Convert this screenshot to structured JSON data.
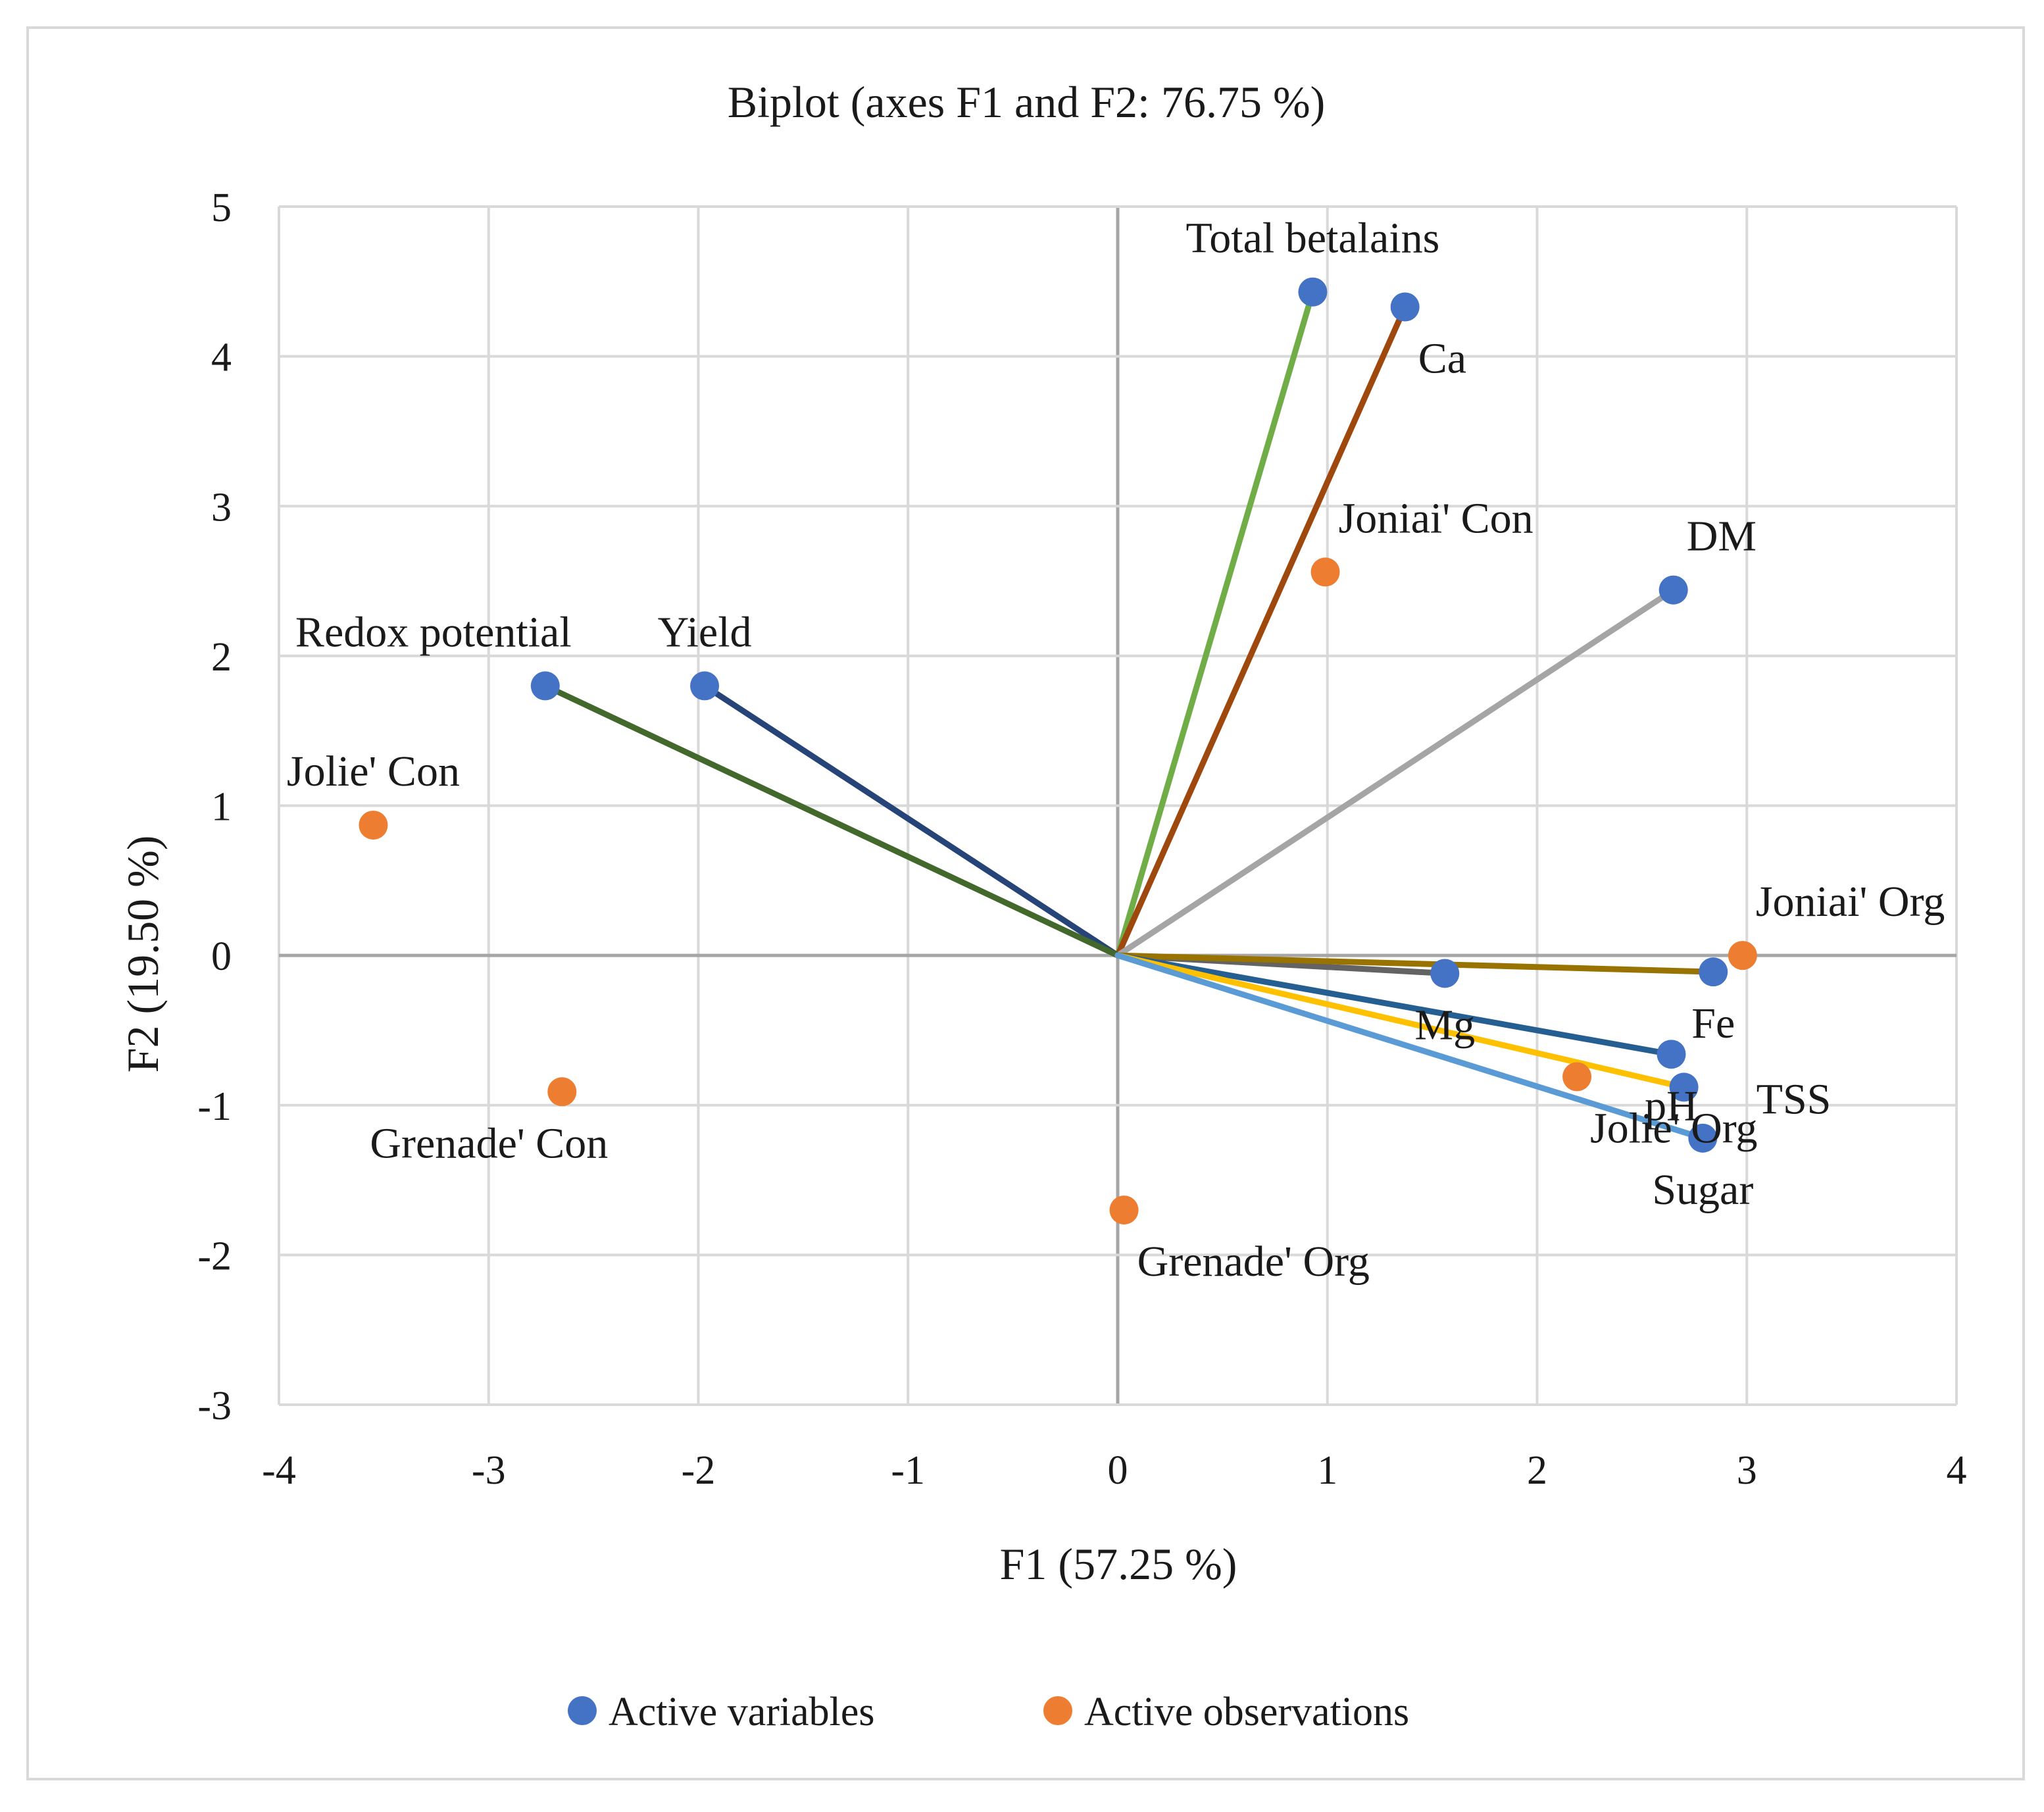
{
  "chart_data": {
    "type": "scatter",
    "subtype": "biplot",
    "title": "Biplot (axes F1 and F2: 76.75 %)",
    "xlabel": "F1 (57.25 %)",
    "ylabel": "F2 (19.50 %)",
    "xlim": [
      -4,
      4
    ],
    "ylim": [
      -3,
      5
    ],
    "xticks": [
      -4,
      -3,
      -2,
      -1,
      0,
      1,
      2,
      3,
      4
    ],
    "yticks": [
      -3,
      -2,
      -1,
      0,
      1,
      2,
      3,
      4,
      5
    ],
    "xtick_labels": [
      "-4",
      "-3",
      "-2",
      "-1",
      "0",
      "1",
      "2",
      "3",
      "4"
    ],
    "ytick_labels": [
      "-3",
      "-2",
      "-1",
      "0",
      "1",
      "2",
      "3",
      "4",
      "5"
    ],
    "grid": true,
    "legend_position": "bottom",
    "legend": [
      {
        "name": "Active variables",
        "color": "#4472C4"
      },
      {
        "name": "Active observations",
        "color": "#ED7D31"
      }
    ],
    "variables": [
      {
        "name": "Total betalains",
        "x": 0.93,
        "y": 4.43,
        "line_color": "#70AD47",
        "label_pos": "above"
      },
      {
        "name": "Ca",
        "x": 1.37,
        "y": 4.33,
        "line_color": "#9E480E",
        "label_pos": "below-right"
      },
      {
        "name": "DM",
        "x": 2.65,
        "y": 2.44,
        "line_color": "#A5A5A5",
        "label_pos": "above-right"
      },
      {
        "name": "Yield",
        "x": -1.97,
        "y": 1.8,
        "line_color": "#264478",
        "label_pos": "above"
      },
      {
        "name": "Redox potential",
        "x": -2.73,
        "y": 1.8,
        "line_color": "#43682B",
        "label_pos": "above-left"
      },
      {
        "name": "Mg",
        "x": 1.56,
        "y": -0.12,
        "line_color": "#636363",
        "label_pos": "below"
      },
      {
        "name": "Fe",
        "x": 2.84,
        "y": -0.11,
        "line_color": "#997300",
        "label_pos": "below"
      },
      {
        "name": "pH",
        "x": 2.64,
        "y": -0.66,
        "line_color": "#255E91",
        "label_pos": "below"
      },
      {
        "name": "TSS",
        "x": 2.7,
        "y": -0.88,
        "line_color": "#FFC000",
        "label_pos": "right"
      },
      {
        "name": "Sugar",
        "x": 2.79,
        "y": -1.22,
        "line_color": "#5B9BD5",
        "label_pos": "below"
      }
    ],
    "observations": [
      {
        "name": "Joniai' Con",
        "x": 0.99,
        "y": 2.56,
        "label_pos": "above-right"
      },
      {
        "name": "Joniai' Org",
        "x": 2.98,
        "y": 0.0,
        "label_pos": "above-right"
      },
      {
        "name": "Jolie' Con",
        "x": -3.55,
        "y": 0.87,
        "label_pos": "above"
      },
      {
        "name": "Jolie' Org",
        "x": 2.19,
        "y": -0.81,
        "label_pos": "below-right"
      },
      {
        "name": "Grenade' Con",
        "x": -2.65,
        "y": -0.91,
        "label_pos": "below-left"
      },
      {
        "name": "Grenade' Org",
        "x": 0.03,
        "y": -1.7,
        "label_pos": "below-right"
      }
    ]
  }
}
